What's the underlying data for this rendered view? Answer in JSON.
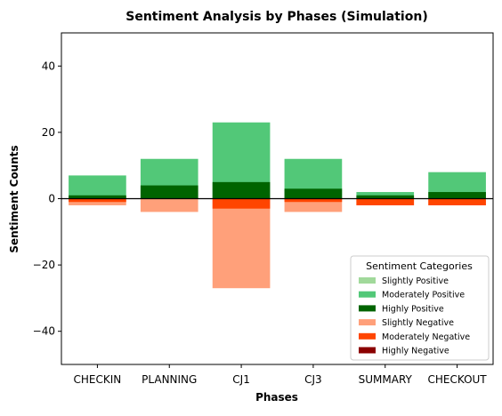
{
  "chart_data": {
    "type": "bar",
    "stacking": "overlapping",
    "title": "Sentiment Analysis by Phases (Simulation)",
    "xlabel": "Phases",
    "ylabel": "Sentiment Counts",
    "categories": [
      "CHECKIN",
      "PLANNING",
      "CJ1",
      "CJ3",
      "SUMMARY",
      "CHECKOUT"
    ],
    "ylim": [
      -50,
      50
    ],
    "yticks": [
      -40,
      -20,
      0,
      20,
      40
    ],
    "grid": false,
    "zero_line": true,
    "legend": {
      "title": "Sentiment Categories",
      "placement": "lower-right"
    },
    "series": [
      {
        "name": "Slightly Positive",
        "color": "#a1d99b",
        "values": [
          0,
          0,
          0,
          0,
          0,
          0
        ]
      },
      {
        "name": "Moderately Positive",
        "color": "#52c878",
        "values": [
          7,
          12,
          23,
          12,
          2,
          8
        ]
      },
      {
        "name": "Highly Positive",
        "color": "#006400",
        "values": [
          1,
          4,
          5,
          3,
          1,
          2
        ]
      },
      {
        "name": "Slightly Negative",
        "color": "#ffa07a",
        "values": [
          -2,
          -4,
          -27,
          -4,
          -2,
          -2
        ]
      },
      {
        "name": "Moderately Negative",
        "color": "#ff4500",
        "values": [
          -1,
          0,
          -3,
          -1,
          -2,
          -2
        ]
      },
      {
        "name": "Highly Negative",
        "color": "#8b0000",
        "values": [
          0,
          0,
          0,
          0,
          0,
          0
        ]
      }
    ]
  }
}
